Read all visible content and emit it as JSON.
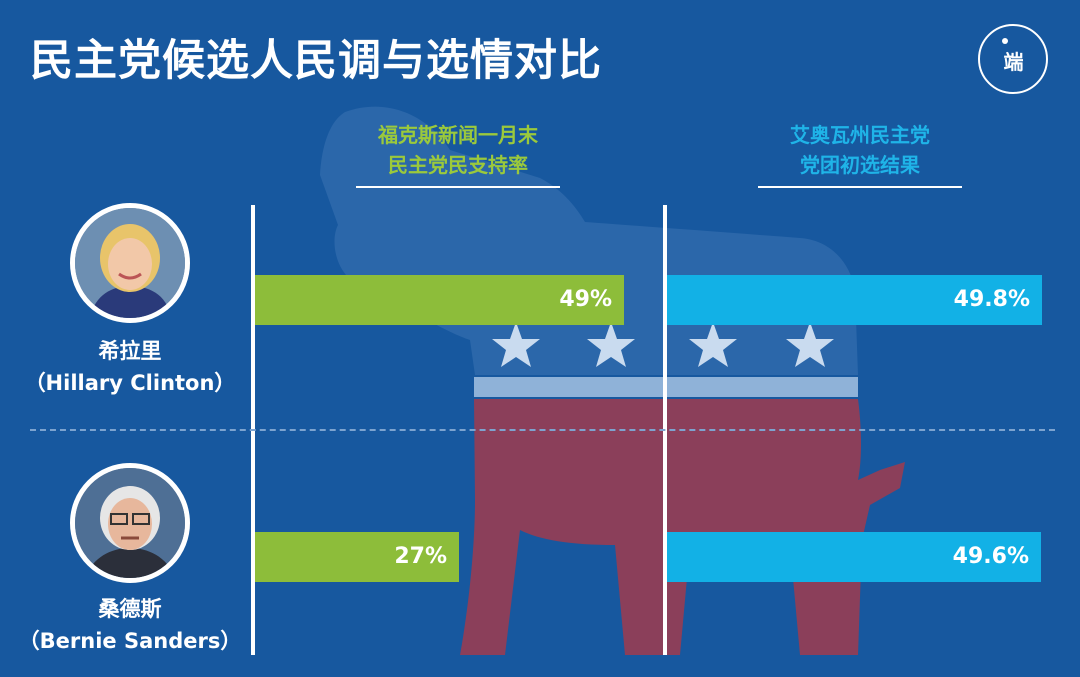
{
  "title": "民主党候选人民调与选情对比",
  "logo": {
    "text": "端"
  },
  "colors": {
    "background": "#17589f",
    "fox_bar": "#8dbd3a",
    "iowa_bar": "#12b1e6",
    "donkey_blue": "#2b67aa",
    "donkey_red": "#8b3f5a",
    "donkey_stripe": "#8fb2d8"
  },
  "chart_data": {
    "type": "bar",
    "orientation": "horizontal",
    "categories": [
      "希拉里（Hillary Clinton）",
      "桑德斯（Bernie Sanders）"
    ],
    "series": [
      {
        "name": "福克斯新闻一月末民主党民支持率",
        "values": [
          49,
          27
        ],
        "labels": [
          "49%",
          "27%"
        ]
      },
      {
        "name": "艾奥瓦州民主党党团初选结果",
        "values": [
          49.8,
          49.6
        ],
        "labels": [
          "49.8%",
          "49.6%"
        ]
      }
    ],
    "xlim": [
      0,
      50
    ],
    "unit": "%",
    "grid": false,
    "legend": "column headers"
  },
  "columns": [
    {
      "line1": "福克斯新闻一月末",
      "line2": "民主党民支持率"
    },
    {
      "line1": "艾奥瓦州民主党",
      "line2": "党团初选结果"
    }
  ],
  "candidates": [
    {
      "name_cn": "希拉里",
      "name_en": "（Hillary Clinton）"
    },
    {
      "name_cn": "桑德斯",
      "name_en": "（Bernie Sanders）"
    }
  ]
}
